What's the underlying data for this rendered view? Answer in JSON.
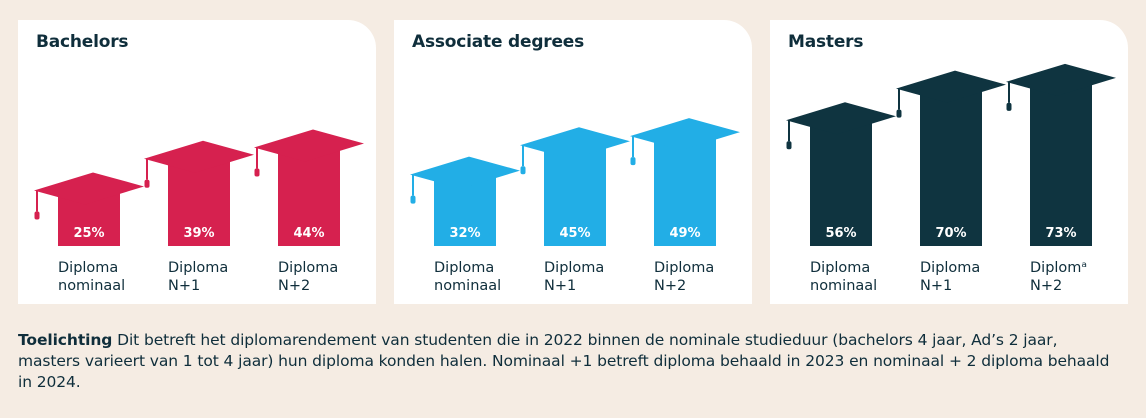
{
  "colors": {
    "background": "#f5ece3",
    "panel": "#ffffff",
    "text": "#0f2e3b",
    "bachelors": "#d6214f",
    "associate": "#22aee6",
    "masters": "#0f3440",
    "value_label": "#ffffff"
  },
  "chart_data": [
    {
      "type": "bar",
      "title": "Bachelors",
      "categories": [
        [
          "Diploma",
          "nominaal"
        ],
        [
          "Diploma",
          "N+1"
        ],
        [
          "Diploma",
          "N+2"
        ]
      ],
      "values": [
        25,
        39,
        44
      ],
      "value_labels": [
        "25%",
        "39%",
        "44%"
      ],
      "ylim": [
        0,
        80
      ],
      "grid": false,
      "legend": "none",
      "color": "#d6214f",
      "decoration": "graduation-cap"
    },
    {
      "type": "bar",
      "title": "Associate degrees",
      "categories": [
        [
          "Diploma",
          "nominaal"
        ],
        [
          "Diploma",
          "N+1"
        ],
        [
          "Diploma",
          "N+2"
        ]
      ],
      "values": [
        32,
        45,
        49
      ],
      "value_labels": [
        "32%",
        "45%",
        "49%"
      ],
      "ylim": [
        0,
        80
      ],
      "grid": false,
      "legend": "none",
      "color": "#22aee6",
      "decoration": "graduation-cap"
    },
    {
      "type": "bar",
      "title": "Masters",
      "categories": [
        [
          "Diploma",
          "nominaal"
        ],
        [
          "Diploma",
          "N+1"
        ],
        [
          "Diplomᵃ",
          "N+2"
        ]
      ],
      "values": [
        56,
        70,
        73
      ],
      "value_labels": [
        "56%",
        "70%",
        "73%"
      ],
      "ylim": [
        0,
        80
      ],
      "grid": false,
      "legend": "none",
      "color": "#0f3440",
      "decoration": "graduation-cap"
    }
  ],
  "footnote": {
    "label": "Toelichting",
    "text": " Dit betreft het diplomarendement van studenten die in 2022 binnen de nominale studieduur (bachelors 4 jaar, Ad’s 2 jaar, masters varieert van 1 tot 4 jaar) hun diploma konden halen. Nominaal +1 betreft diploma behaald in 2023 en nominaal + 2 diploma behaald in 2024."
  }
}
